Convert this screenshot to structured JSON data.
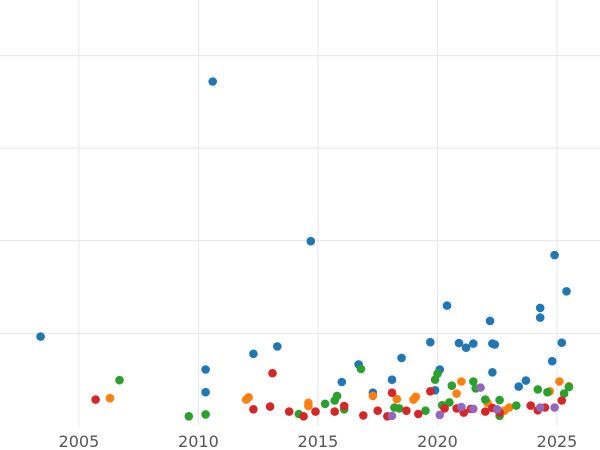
{
  "chart_data": {
    "type": "scatter",
    "title": "",
    "xlabel": "",
    "ylabel": "",
    "xlim": [
      2001.7,
      2026.8
    ],
    "ylim": [
      0,
      9.2
    ],
    "x_ticks": [
      2005,
      2010,
      2015,
      2020,
      2025
    ],
    "x_tick_labels": [
      "2005",
      "2010",
      "2015",
      "2020",
      "2025"
    ],
    "y_gridlines": [
      2,
      4,
      6,
      8
    ],
    "y_tick_labels_shown": false,
    "grid": true,
    "legend": "none",
    "series": [
      {
        "color": "#1f77b4",
        "points": [
          [
            2003.4,
            1.93
          ],
          [
            2010.6,
            7.44
          ],
          [
            2014.7,
            3.99
          ],
          [
            2010.3,
            1.22
          ],
          [
            2010.3,
            0.73
          ],
          [
            2012.3,
            1.56
          ],
          [
            2013.3,
            1.72
          ],
          [
            2016.0,
            0.95
          ],
          [
            2016.7,
            1.33
          ],
          [
            2017.3,
            0.72
          ],
          [
            2018.1,
            1.0
          ],
          [
            2018.5,
            1.47
          ],
          [
            2019.7,
            1.81
          ],
          [
            2019.9,
            0.77
          ],
          [
            2020.1,
            1.22
          ],
          [
            2020.4,
            2.6
          ],
          [
            2020.9,
            1.79
          ],
          [
            2021.2,
            1.69
          ],
          [
            2021.5,
            1.78
          ],
          [
            2022.2,
            2.27
          ],
          [
            2022.3,
            1.78
          ],
          [
            2022.4,
            1.76
          ],
          [
            2022.3,
            1.16
          ],
          [
            2023.4,
            0.85
          ],
          [
            2023.7,
            0.98
          ],
          [
            2024.3,
            2.55
          ],
          [
            2024.3,
            2.34
          ],
          [
            2024.9,
            3.69
          ],
          [
            2024.8,
            1.4
          ],
          [
            2025.2,
            1.8
          ],
          [
            2025.4,
            2.91
          ]
        ]
      },
      {
        "color": "#ff7f0e",
        "points": [
          [
            2006.3,
            0.6
          ],
          [
            2012.0,
            0.57
          ],
          [
            2012.1,
            0.62
          ],
          [
            2014.6,
            0.5
          ],
          [
            2014.6,
            0.43
          ],
          [
            2017.3,
            0.65
          ],
          [
            2018.3,
            0.58
          ],
          [
            2019.0,
            0.57
          ],
          [
            2019.1,
            0.63
          ],
          [
            2020.8,
            0.7
          ],
          [
            2021.0,
            0.96
          ],
          [
            2022.1,
            0.5
          ],
          [
            2022.8,
            0.33
          ],
          [
            2023.0,
            0.4
          ],
          [
            2024.7,
            0.75
          ],
          [
            2025.1,
            0.96
          ],
          [
            2025.5,
            0.86
          ]
        ]
      },
      {
        "color": "#2ca02c",
        "points": [
          [
            2006.7,
            0.99
          ],
          [
            2009.6,
            0.21
          ],
          [
            2010.3,
            0.25
          ],
          [
            2014.2,
            0.26
          ],
          [
            2015.3,
            0.48
          ],
          [
            2015.7,
            0.55
          ],
          [
            2015.8,
            0.65
          ],
          [
            2016.1,
            0.36
          ],
          [
            2016.8,
            1.23
          ],
          [
            2018.2,
            0.4
          ],
          [
            2018.4,
            0.38
          ],
          [
            2019.5,
            0.33
          ],
          [
            2019.9,
            1.0
          ],
          [
            2020.0,
            1.13
          ],
          [
            2020.2,
            0.45
          ],
          [
            2020.5,
            0.51
          ],
          [
            2020.6,
            0.87
          ],
          [
            2021.5,
            0.96
          ],
          [
            2021.6,
            0.81
          ],
          [
            2022.0,
            0.57
          ],
          [
            2022.6,
            0.56
          ],
          [
            2022.6,
            0.22
          ],
          [
            2023.3,
            0.44
          ],
          [
            2024.2,
            0.79
          ],
          [
            2024.6,
            0.73
          ],
          [
            2025.3,
            0.7
          ],
          [
            2025.5,
            0.84
          ]
        ]
      },
      {
        "color": "#d62728",
        "points": [
          [
            2005.7,
            0.57
          ],
          [
            2012.3,
            0.36
          ],
          [
            2013.0,
            0.42
          ],
          [
            2013.1,
            1.14
          ],
          [
            2013.8,
            0.31
          ],
          [
            2014.4,
            0.21
          ],
          [
            2014.9,
            0.31
          ],
          [
            2015.7,
            0.31
          ],
          [
            2016.1,
            0.43
          ],
          [
            2016.9,
            0.23
          ],
          [
            2017.5,
            0.33
          ],
          [
            2017.9,
            0.21
          ],
          [
            2018.1,
            0.72
          ],
          [
            2018.7,
            0.33
          ],
          [
            2019.2,
            0.26
          ],
          [
            2019.7,
            0.75
          ],
          [
            2020.3,
            0.38
          ],
          [
            2020.8,
            0.38
          ],
          [
            2021.1,
            0.29
          ],
          [
            2021.4,
            0.37
          ],
          [
            2022.0,
            0.31
          ],
          [
            2022.3,
            0.39
          ],
          [
            2022.6,
            0.29
          ],
          [
            2023.9,
            0.44
          ],
          [
            2024.2,
            0.34
          ],
          [
            2024.5,
            0.4
          ],
          [
            2025.2,
            0.55
          ]
        ]
      },
      {
        "color": "#9467bd",
        "points": [
          [
            2018.1,
            0.22
          ],
          [
            2020.1,
            0.24
          ],
          [
            2021.0,
            0.41
          ],
          [
            2021.5,
            0.37
          ],
          [
            2021.8,
            0.83
          ],
          [
            2022.5,
            0.36
          ],
          [
            2024.3,
            0.4
          ],
          [
            2024.9,
            0.4
          ]
        ]
      }
    ]
  }
}
